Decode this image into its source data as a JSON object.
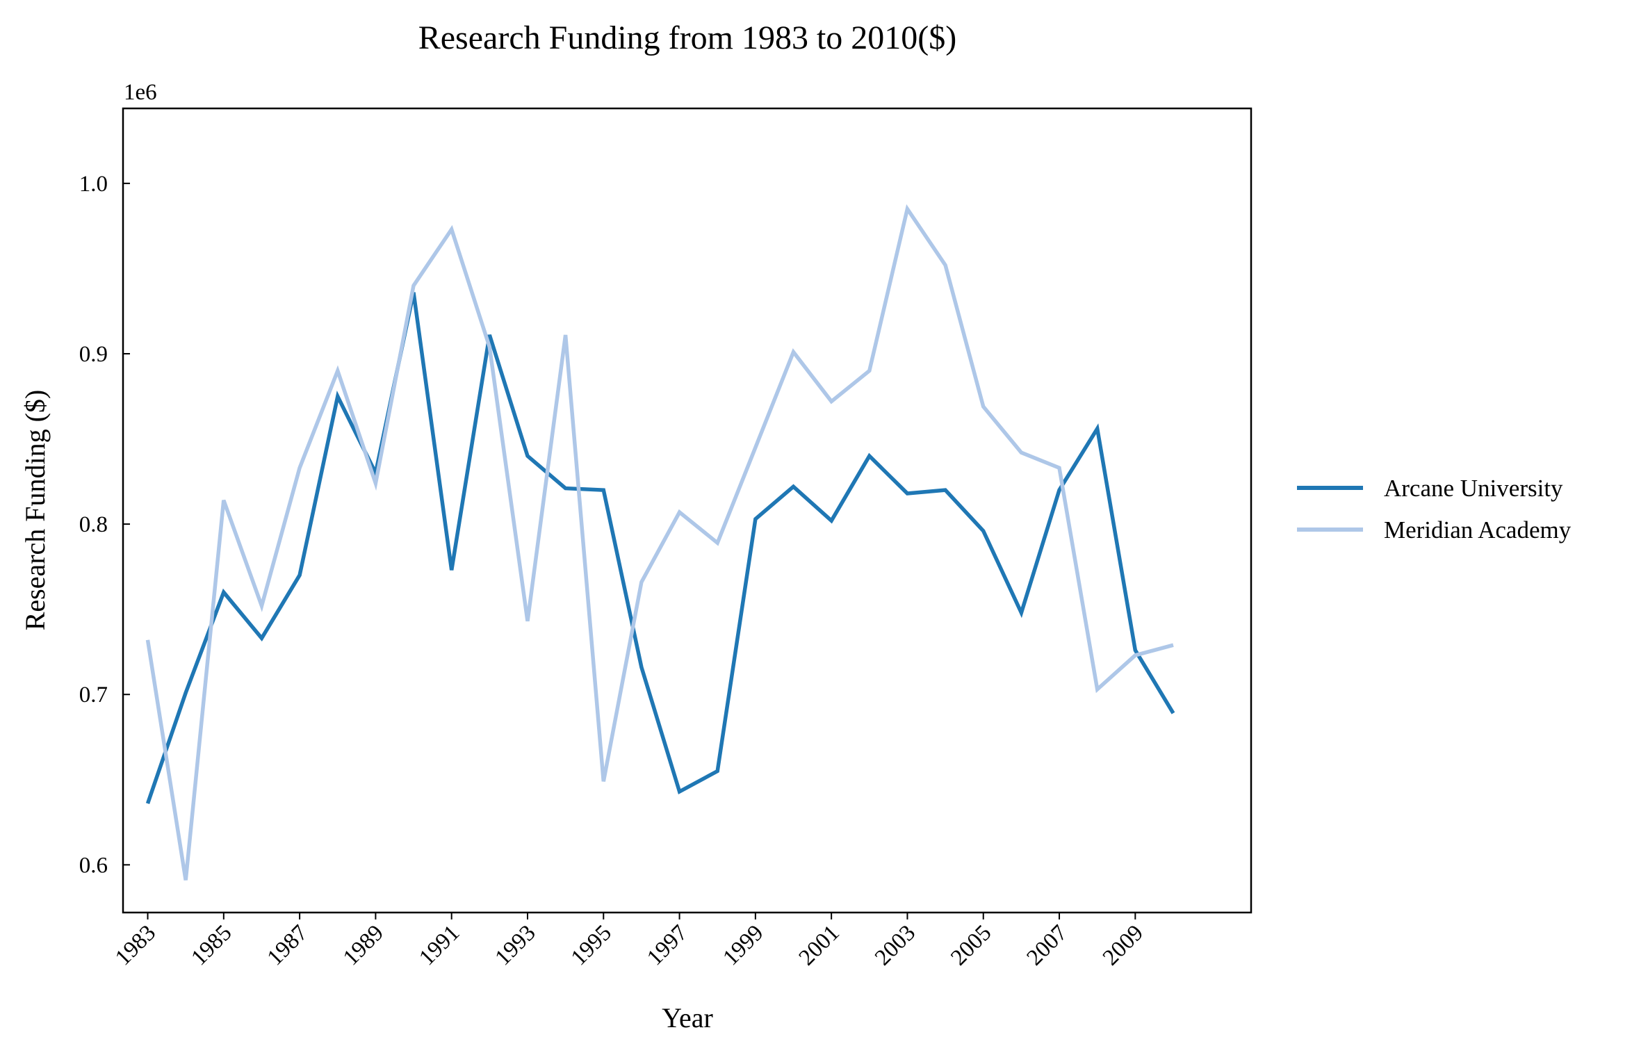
{
  "chart_data": {
    "type": "line",
    "title": "Research Funding from 1983 to 2010($)",
    "xlabel": "Year",
    "ylabel": "Research Funding ($)",
    "y_offset_label": "1e6",
    "x": [
      1983,
      1984,
      1985,
      1986,
      1987,
      1988,
      1989,
      1990,
      1991,
      1992,
      1993,
      1994,
      1995,
      1996,
      1997,
      1998,
      1999,
      2000,
      2001,
      2002,
      2003,
      2004,
      2005,
      2006,
      2007,
      2008,
      2009,
      2010
    ],
    "x_tick_labels": [
      "1983",
      "1985",
      "1987",
      "1989",
      "1991",
      "1993",
      "1995",
      "1997",
      "1999",
      "2001",
      "2003",
      "2005",
      "2007",
      "2009"
    ],
    "y_tick_labels": [
      "0.6",
      "0.7",
      "0.8",
      "0.9",
      "1.0"
    ],
    "xlim": [
      1982.35,
      2012.05
    ],
    "ylim": [
      572000,
      1044000
    ],
    "legend_position": "right",
    "grid": false,
    "series": [
      {
        "name": "Arcane University",
        "color": "#1f77b4",
        "values": [
          636000,
          701000,
          760000,
          733000,
          770000,
          875000,
          830000,
          936000,
          773000,
          911000,
          840000,
          821000,
          820000,
          716000,
          643000,
          655000,
          803000,
          822000,
          802000,
          840000,
          818000,
          820000,
          796000,
          748000,
          820000,
          856000,
          726000,
          689000
        ]
      },
      {
        "name": "Meridian Academy",
        "color": "#aec7e8",
        "values": [
          732000,
          591000,
          814000,
          752000,
          833000,
          890000,
          824000,
          940000,
          973000,
          904000,
          743000,
          911000,
          649000,
          766000,
          807000,
          789000,
          845000,
          901000,
          872000,
          890000,
          985000,
          952000,
          869000,
          842000,
          833000,
          703000,
          723000,
          729000
        ]
      }
    ]
  }
}
